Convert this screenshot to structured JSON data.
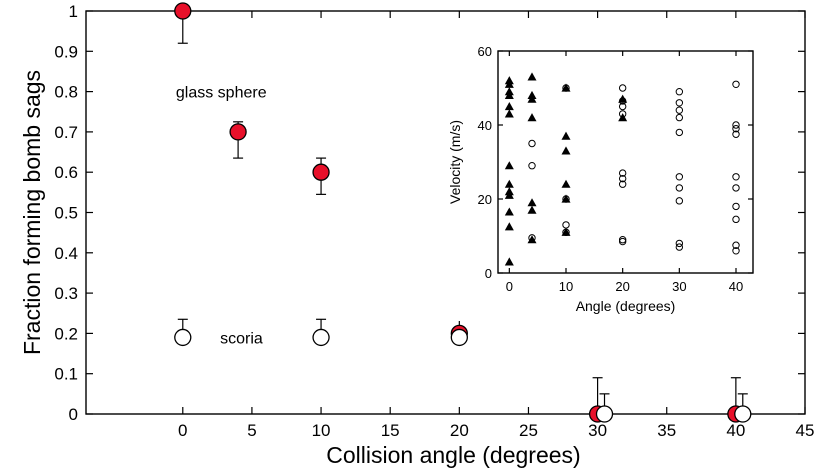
{
  "chart_data": [
    {
      "type": "scatter",
      "xlabel": "Collision angle (degrees)",
      "ylabel": "Fraction forming bomb sags",
      "xlim": [
        -7,
        45
      ],
      "ylim": [
        0,
        1
      ],
      "xticks": [
        "0",
        "5",
        "10",
        "15",
        "20",
        "25",
        "30",
        "35",
        "40",
        "45"
      ],
      "xtick_values": [
        0,
        5,
        10,
        15,
        20,
        25,
        30,
        35,
        40,
        45
      ],
      "yticks": [
        "0",
        "0.1",
        "0.2",
        "0.3",
        "0.4",
        "0.5",
        "0.6",
        "0.7",
        "0.8",
        "0.9",
        "1"
      ],
      "ytick_values": [
        0,
        0.1,
        0.2,
        0.3,
        0.4,
        0.5,
        0.6,
        0.7,
        0.8,
        0.9,
        1
      ],
      "grid": false,
      "annotations": [
        {
          "text": "glass sphere",
          "x": -0.5,
          "y": 0.8
        },
        {
          "text": "scoria",
          "x": 2.7,
          "y": 0.19
        }
      ],
      "series": [
        {
          "marker": "filled-circle",
          "color": "#e8102a",
          "points": [
            {
              "x": 0,
              "y": 1.0,
              "err_low": 0.08,
              "err_high": 0
            },
            {
              "x": 4,
              "y": 0.7,
              "err_low": 0.065,
              "err_high": 0.025
            },
            {
              "x": 10,
              "y": 0.6,
              "err_low": 0.055,
              "err_high": 0.035
            },
            {
              "x": 20,
              "y": 0.2,
              "err_low": 0,
              "err_high": 0.07
            },
            {
              "x": 30,
              "y": 0.0,
              "err_low": 0,
              "err_high": 0.09
            },
            {
              "x": 40,
              "y": 0.0,
              "err_low": 0,
              "err_high": 0.09
            }
          ]
        },
        {
          "marker": "open-circle",
          "color": "#ffffff",
          "points": [
            {
              "x": 0,
              "y": 0.19,
              "err_low": 0,
              "err_high": 0.045
            },
            {
              "x": 10,
              "y": 0.19,
              "err_low": 0,
              "err_high": 0.045
            },
            {
              "x": 20,
              "y": 0.19,
              "err_low": 0,
              "err_high": 0
            },
            {
              "x": 30.5,
              "y": 0.0,
              "err_low": 0,
              "err_high": 0.05
            },
            {
              "x": 40.5,
              "y": 0.0,
              "err_low": 0,
              "err_high": 0.05
            }
          ]
        }
      ]
    },
    {
      "type": "scatter",
      "xlabel": "Angle (degrees)",
      "ylabel": "Velocity (m/s)",
      "xlim": [
        -2,
        43
      ],
      "ylim": [
        0,
        60
      ],
      "xticks": [
        "0",
        "10",
        "20",
        "30",
        "40"
      ],
      "xtick_values": [
        0,
        10,
        20,
        30,
        40
      ],
      "yticks": [
        "0",
        "20",
        "40",
        "60"
      ],
      "ytick_values": [
        0,
        20,
        40,
        60
      ],
      "grid": false,
      "series": [
        {
          "marker": "filled-triangle",
          "color": "#000000",
          "points": [
            [
              0,
              3
            ],
            [
              0,
              12.5
            ],
            [
              0,
              16.5
            ],
            [
              0,
              21
            ],
            [
              0,
              22
            ],
            [
              0,
              24
            ],
            [
              0,
              29
            ],
            [
              0,
              43
            ],
            [
              0,
              45
            ],
            [
              0,
              48
            ],
            [
              0,
              49
            ],
            [
              0,
              51
            ],
            [
              0,
              52
            ],
            [
              4,
              9
            ],
            [
              4,
              17
            ],
            [
              4,
              19
            ],
            [
              4,
              42
            ],
            [
              4,
              47
            ],
            [
              4,
              48
            ],
            [
              4,
              53
            ],
            [
              10,
              11
            ],
            [
              10,
              20
            ],
            [
              10,
              24
            ],
            [
              10,
              33
            ],
            [
              10,
              37
            ],
            [
              10,
              50
            ],
            [
              20,
              42
            ],
            [
              20,
              47
            ]
          ]
        },
        {
          "marker": "open-circle",
          "color": "#ffffff",
          "points": [
            [
              4,
              9.5
            ],
            [
              4,
              29
            ],
            [
              4,
              35
            ],
            [
              10,
              11
            ],
            [
              10,
              13
            ],
            [
              10,
              20
            ],
            [
              10,
              50
            ],
            [
              20,
              8.5
            ],
            [
              20,
              9
            ],
            [
              20,
              24
            ],
            [
              20,
              25.5
            ],
            [
              20,
              27
            ],
            [
              20,
              43
            ],
            [
              20,
              45
            ],
            [
              20,
              46.5
            ],
            [
              20,
              50
            ],
            [
              30,
              7
            ],
            [
              30,
              8
            ],
            [
              30,
              19.5
            ],
            [
              30,
              23
            ],
            [
              30,
              26
            ],
            [
              30,
              38
            ],
            [
              30,
              42
            ],
            [
              30,
              44
            ],
            [
              30,
              46
            ],
            [
              30,
              49
            ],
            [
              40,
              6
            ],
            [
              40,
              7.5
            ],
            [
              40,
              14.5
            ],
            [
              40,
              18
            ],
            [
              40,
              23
            ],
            [
              40,
              26
            ],
            [
              40,
              37.5
            ],
            [
              40,
              39
            ],
            [
              40,
              40
            ],
            [
              40,
              51
            ]
          ]
        }
      ]
    }
  ]
}
